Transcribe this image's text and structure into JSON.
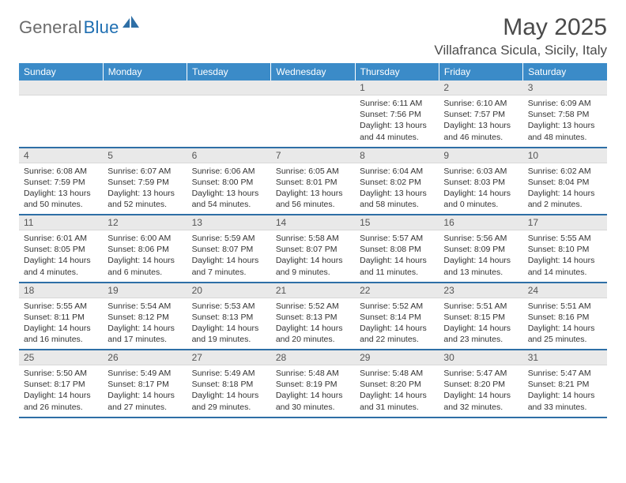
{
  "brand": {
    "part1": "General",
    "part2": "Blue"
  },
  "title": "May 2025",
  "location": "Villafranca Sicula, Sicily, Italy",
  "colors": {
    "header_bg": "#3b8bc8",
    "header_text": "#ffffff",
    "daynum_bg": "#e9e9e9",
    "row_border": "#2e6fa6",
    "text": "#333333",
    "brand_gray": "#6b6b6b",
    "brand_blue": "#1f6fb2"
  },
  "day_headers": [
    "Sunday",
    "Monday",
    "Tuesday",
    "Wednesday",
    "Thursday",
    "Friday",
    "Saturday"
  ],
  "weeks": [
    [
      {
        "n": "",
        "sr": "",
        "ss": "",
        "dl": ""
      },
      {
        "n": "",
        "sr": "",
        "ss": "",
        "dl": ""
      },
      {
        "n": "",
        "sr": "",
        "ss": "",
        "dl": ""
      },
      {
        "n": "",
        "sr": "",
        "ss": "",
        "dl": ""
      },
      {
        "n": "1",
        "sr": "Sunrise: 6:11 AM",
        "ss": "Sunset: 7:56 PM",
        "dl": "Daylight: 13 hours and 44 minutes."
      },
      {
        "n": "2",
        "sr": "Sunrise: 6:10 AM",
        "ss": "Sunset: 7:57 PM",
        "dl": "Daylight: 13 hours and 46 minutes."
      },
      {
        "n": "3",
        "sr": "Sunrise: 6:09 AM",
        "ss": "Sunset: 7:58 PM",
        "dl": "Daylight: 13 hours and 48 minutes."
      }
    ],
    [
      {
        "n": "4",
        "sr": "Sunrise: 6:08 AM",
        "ss": "Sunset: 7:59 PM",
        "dl": "Daylight: 13 hours and 50 minutes."
      },
      {
        "n": "5",
        "sr": "Sunrise: 6:07 AM",
        "ss": "Sunset: 7:59 PM",
        "dl": "Daylight: 13 hours and 52 minutes."
      },
      {
        "n": "6",
        "sr": "Sunrise: 6:06 AM",
        "ss": "Sunset: 8:00 PM",
        "dl": "Daylight: 13 hours and 54 minutes."
      },
      {
        "n": "7",
        "sr": "Sunrise: 6:05 AM",
        "ss": "Sunset: 8:01 PM",
        "dl": "Daylight: 13 hours and 56 minutes."
      },
      {
        "n": "8",
        "sr": "Sunrise: 6:04 AM",
        "ss": "Sunset: 8:02 PM",
        "dl": "Daylight: 13 hours and 58 minutes."
      },
      {
        "n": "9",
        "sr": "Sunrise: 6:03 AM",
        "ss": "Sunset: 8:03 PM",
        "dl": "Daylight: 14 hours and 0 minutes."
      },
      {
        "n": "10",
        "sr": "Sunrise: 6:02 AM",
        "ss": "Sunset: 8:04 PM",
        "dl": "Daylight: 14 hours and 2 minutes."
      }
    ],
    [
      {
        "n": "11",
        "sr": "Sunrise: 6:01 AM",
        "ss": "Sunset: 8:05 PM",
        "dl": "Daylight: 14 hours and 4 minutes."
      },
      {
        "n": "12",
        "sr": "Sunrise: 6:00 AM",
        "ss": "Sunset: 8:06 PM",
        "dl": "Daylight: 14 hours and 6 minutes."
      },
      {
        "n": "13",
        "sr": "Sunrise: 5:59 AM",
        "ss": "Sunset: 8:07 PM",
        "dl": "Daylight: 14 hours and 7 minutes."
      },
      {
        "n": "14",
        "sr": "Sunrise: 5:58 AM",
        "ss": "Sunset: 8:07 PM",
        "dl": "Daylight: 14 hours and 9 minutes."
      },
      {
        "n": "15",
        "sr": "Sunrise: 5:57 AM",
        "ss": "Sunset: 8:08 PM",
        "dl": "Daylight: 14 hours and 11 minutes."
      },
      {
        "n": "16",
        "sr": "Sunrise: 5:56 AM",
        "ss": "Sunset: 8:09 PM",
        "dl": "Daylight: 14 hours and 13 minutes."
      },
      {
        "n": "17",
        "sr": "Sunrise: 5:55 AM",
        "ss": "Sunset: 8:10 PM",
        "dl": "Daylight: 14 hours and 14 minutes."
      }
    ],
    [
      {
        "n": "18",
        "sr": "Sunrise: 5:55 AM",
        "ss": "Sunset: 8:11 PM",
        "dl": "Daylight: 14 hours and 16 minutes."
      },
      {
        "n": "19",
        "sr": "Sunrise: 5:54 AM",
        "ss": "Sunset: 8:12 PM",
        "dl": "Daylight: 14 hours and 17 minutes."
      },
      {
        "n": "20",
        "sr": "Sunrise: 5:53 AM",
        "ss": "Sunset: 8:13 PM",
        "dl": "Daylight: 14 hours and 19 minutes."
      },
      {
        "n": "21",
        "sr": "Sunrise: 5:52 AM",
        "ss": "Sunset: 8:13 PM",
        "dl": "Daylight: 14 hours and 20 minutes."
      },
      {
        "n": "22",
        "sr": "Sunrise: 5:52 AM",
        "ss": "Sunset: 8:14 PM",
        "dl": "Daylight: 14 hours and 22 minutes."
      },
      {
        "n": "23",
        "sr": "Sunrise: 5:51 AM",
        "ss": "Sunset: 8:15 PM",
        "dl": "Daylight: 14 hours and 23 minutes."
      },
      {
        "n": "24",
        "sr": "Sunrise: 5:51 AM",
        "ss": "Sunset: 8:16 PM",
        "dl": "Daylight: 14 hours and 25 minutes."
      }
    ],
    [
      {
        "n": "25",
        "sr": "Sunrise: 5:50 AM",
        "ss": "Sunset: 8:17 PM",
        "dl": "Daylight: 14 hours and 26 minutes."
      },
      {
        "n": "26",
        "sr": "Sunrise: 5:49 AM",
        "ss": "Sunset: 8:17 PM",
        "dl": "Daylight: 14 hours and 27 minutes."
      },
      {
        "n": "27",
        "sr": "Sunrise: 5:49 AM",
        "ss": "Sunset: 8:18 PM",
        "dl": "Daylight: 14 hours and 29 minutes."
      },
      {
        "n": "28",
        "sr": "Sunrise: 5:48 AM",
        "ss": "Sunset: 8:19 PM",
        "dl": "Daylight: 14 hours and 30 minutes."
      },
      {
        "n": "29",
        "sr": "Sunrise: 5:48 AM",
        "ss": "Sunset: 8:20 PM",
        "dl": "Daylight: 14 hours and 31 minutes."
      },
      {
        "n": "30",
        "sr": "Sunrise: 5:47 AM",
        "ss": "Sunset: 8:20 PM",
        "dl": "Daylight: 14 hours and 32 minutes."
      },
      {
        "n": "31",
        "sr": "Sunrise: 5:47 AM",
        "ss": "Sunset: 8:21 PM",
        "dl": "Daylight: 14 hours and 33 minutes."
      }
    ]
  ]
}
